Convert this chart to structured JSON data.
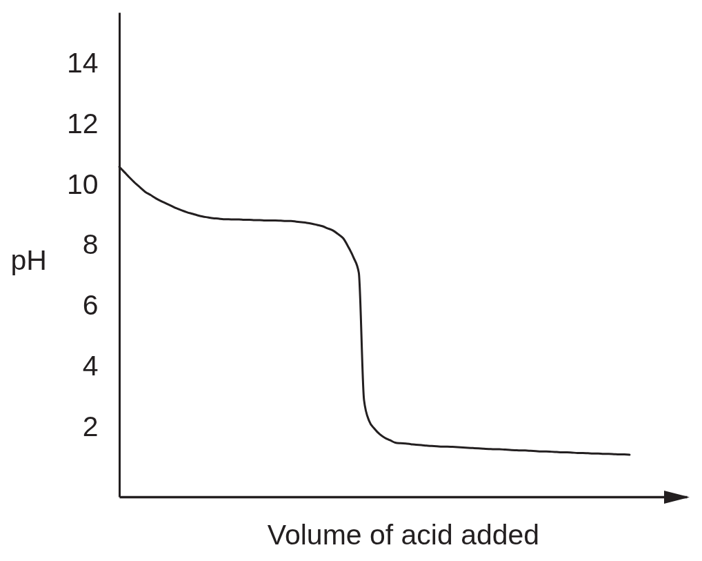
{
  "chart_data": {
    "type": "line",
    "xlabel": "Volume of acid added",
    "ylabel": "pH",
    "categories": [
      null,
      null,
      null,
      null,
      null,
      null,
      null,
      null,
      null,
      null,
      null,
      null,
      null,
      null,
      null,
      null,
      null,
      null,
      null,
      null,
      null,
      null,
      null,
      null,
      null,
      null,
      null,
      null,
      null,
      null,
      null,
      null,
      null,
      null,
      null,
      null,
      null,
      null,
      null,
      null,
      null,
      null,
      null,
      null,
      null,
      null,
      null,
      null,
      null,
      null,
      null,
      null,
      null,
      null,
      null,
      null,
      null,
      null,
      null,
      null,
      null,
      null,
      null,
      null,
      null,
      null,
      null,
      null,
      null,
      null,
      null,
      null,
      null,
      null,
      null,
      null,
      null,
      null,
      null,
      null,
      null,
      null,
      null,
      null,
      null,
      null,
      null,
      null,
      null,
      null,
      null,
      null,
      null,
      null,
      null,
      null,
      null,
      null,
      null,
      null,
      null,
      null,
      null,
      null,
      null,
      null,
      null,
      null,
      null,
      null
    ],
    "series": [
      {
        "color": "#231f20",
        "values": [
          10.6,
          10.42,
          10.24,
          10.07,
          9.92,
          9.77,
          9.67,
          9.56,
          9.47,
          9.39,
          9.31,
          9.23,
          9.16,
          9.1,
          9.05,
          9.0,
          8.96,
          8.93,
          8.9,
          8.89,
          8.87,
          8.87,
          8.86,
          8.86,
          8.85,
          8.85,
          8.84,
          8.84,
          8.83,
          8.83,
          8.83,
          8.82,
          8.81,
          8.81,
          8.79,
          8.77,
          8.75,
          8.72,
          8.68,
          8.64,
          8.57,
          8.5,
          8.38,
          8.24,
          7.95,
          7.6,
          7.1,
          2.9,
          2.2,
          1.95,
          1.77,
          1.65,
          1.57,
          1.49,
          1.47,
          1.46,
          1.44,
          1.42,
          1.41,
          1.39,
          1.38,
          1.37,
          1.36,
          1.36,
          1.35,
          1.34,
          1.33,
          1.32,
          1.31,
          1.3,
          1.29,
          1.28,
          1.27,
          1.27,
          1.26,
          1.25,
          1.24,
          1.23,
          1.23,
          1.22,
          1.21,
          1.2,
          1.2,
          1.19,
          1.18,
          1.17,
          1.17,
          1.16,
          1.15,
          1.15,
          1.14,
          1.13,
          1.13,
          1.12,
          1.12,
          1.11,
          1.1,
          1.1,
          1.09,
          null,
          null,
          null,
          null,
          null,
          null,
          null,
          null,
          null,
          null,
          null
        ]
      }
    ],
    "ylim": [
      -0.3,
      15.7
    ],
    "yticks": [
      2,
      4,
      6,
      8,
      10,
      12,
      14
    ],
    "tick_labels": "y",
    "marker": "none",
    "line_style": "solid"
  }
}
